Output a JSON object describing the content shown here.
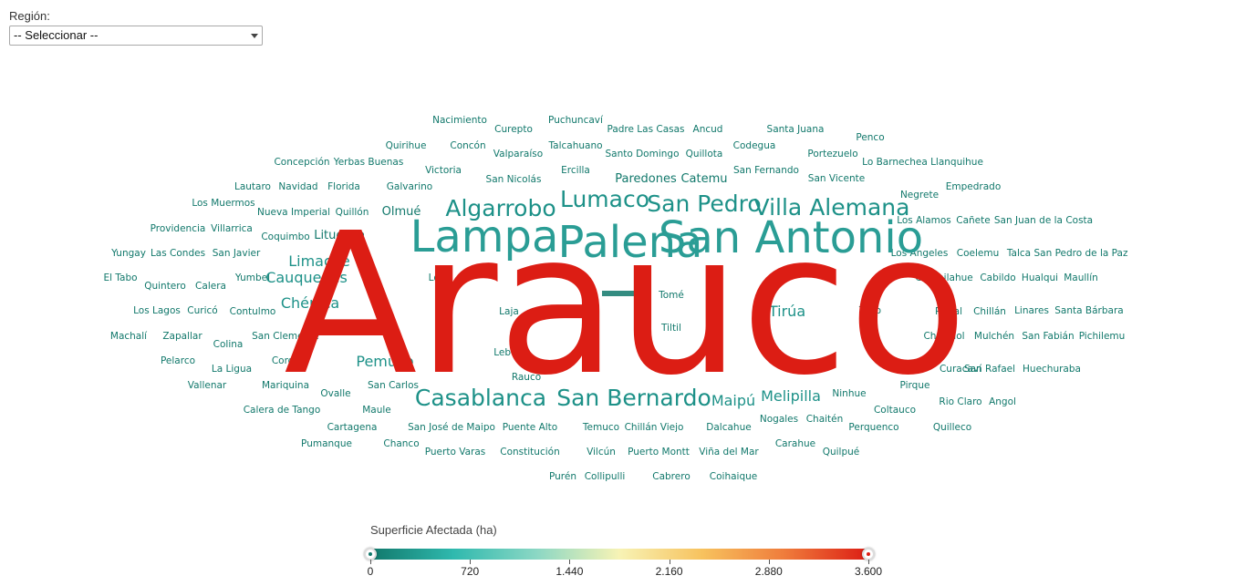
{
  "filter": {
    "label": "Región:",
    "selected": "-- Seleccionar --"
  },
  "colors": {
    "scale": [
      "#11786b",
      "#2fb9ae",
      "#8bd7c4",
      "#f7f3b5",
      "#f7c25e",
      "#ef7b3b",
      "#dc1d14"
    ],
    "small_word": "#11786b",
    "medium_word": "#1d9188",
    "large_word": "#2a9d95",
    "top_word": "#dc1d14"
  },
  "legend": {
    "title": "Superficie Afectada (ha)",
    "ticks": [
      "0",
      "720",
      "1.440",
      "2.160",
      "2.880",
      "3.600"
    ]
  },
  "chart_data": {
    "type": "wordcloud",
    "value_label": "Superficie Afectada (ha)",
    "range": [
      0,
      3600
    ],
    "words": [
      {
        "text": "Arauco",
        "tier": 5
      },
      {
        "text": "Palena",
        "tier": 4
      },
      {
        "text": "Lampa",
        "tier": 4
      },
      {
        "text": "San Antonio",
        "tier": 4
      },
      {
        "text": "Algarrobo",
        "tier": 3
      },
      {
        "text": "Lumaco",
        "tier": 3
      },
      {
        "text": "San Pedro",
        "tier": 3
      },
      {
        "text": "Villa Alemana",
        "tier": 3
      },
      {
        "text": "Casablanca",
        "tier": 3
      },
      {
        "text": "San Bernardo",
        "tier": 3
      },
      {
        "text": "Melipilla",
        "tier": 2
      },
      {
        "text": "Tirúa",
        "tier": 2
      },
      {
        "text": "Pemuco",
        "tier": 2
      },
      {
        "text": "Chépica",
        "tier": 2
      },
      {
        "text": "Cauquenes",
        "tier": 2
      },
      {
        "text": "Limache",
        "tier": 2
      },
      {
        "text": "Maipú",
        "tier": 2
      },
      {
        "text": "Litueche",
        "tier": 1
      },
      {
        "text": "Olmué",
        "tier": 1
      },
      {
        "text": "Paredones",
        "tier": 1
      },
      {
        "text": "Catemu",
        "tier": 1
      },
      {
        "text": "Nacimiento",
        "tier": 0
      },
      {
        "text": "Curepto",
        "tier": 0
      },
      {
        "text": "Puchuncaví",
        "tier": 0
      },
      {
        "text": "Padre Las Casas",
        "tier": 0
      },
      {
        "text": "Ancud",
        "tier": 0
      },
      {
        "text": "Santa Juana",
        "tier": 0
      },
      {
        "text": "Penco",
        "tier": 0
      },
      {
        "text": "Quirihue",
        "tier": 0
      },
      {
        "text": "Concón",
        "tier": 0
      },
      {
        "text": "Valparaíso",
        "tier": 0
      },
      {
        "text": "Talcahuano",
        "tier": 0
      },
      {
        "text": "Santo Domingo",
        "tier": 0
      },
      {
        "text": "Quillota",
        "tier": 0
      },
      {
        "text": "Codegua",
        "tier": 0
      },
      {
        "text": "Portezuelo",
        "tier": 0
      },
      {
        "text": "Concepción",
        "tier": 0
      },
      {
        "text": "Yerbas Buenas",
        "tier": 0
      },
      {
        "text": "Victoria",
        "tier": 0
      },
      {
        "text": "Ercilla",
        "tier": 0
      },
      {
        "text": "San Fernando",
        "tier": 0
      },
      {
        "text": "Lo Barnechea",
        "tier": 0
      },
      {
        "text": "Llanquihue",
        "tier": 0
      },
      {
        "text": "Lautaro",
        "tier": 0
      },
      {
        "text": "Navidad",
        "tier": 0
      },
      {
        "text": "Florida",
        "tier": 0
      },
      {
        "text": "Galvarino",
        "tier": 0
      },
      {
        "text": "San Nicolás",
        "tier": 0
      },
      {
        "text": "San Vicente",
        "tier": 0
      },
      {
        "text": "Empedrado",
        "tier": 0
      },
      {
        "text": "Los Muermos",
        "tier": 0
      },
      {
        "text": "Negrete",
        "tier": 0
      },
      {
        "text": "Nueva Imperial",
        "tier": 0
      },
      {
        "text": "Quillón",
        "tier": 0
      },
      {
        "text": "Los Alamos",
        "tier": 0
      },
      {
        "text": "Cañete",
        "tier": 0
      },
      {
        "text": "San Juan de la Costa",
        "tier": 0
      },
      {
        "text": "Providencia",
        "tier": 0
      },
      {
        "text": "Villarrica",
        "tier": 0
      },
      {
        "text": "Coquimbo",
        "tier": 0
      },
      {
        "text": "Yungay",
        "tier": 0
      },
      {
        "text": "Las Condes",
        "tier": 0
      },
      {
        "text": "San Javier",
        "tier": 0
      },
      {
        "text": "Los Angeles",
        "tier": 0
      },
      {
        "text": "Coelemu",
        "tier": 0
      },
      {
        "text": "Talca",
        "tier": 0
      },
      {
        "text": "San Pedro de la Paz",
        "tier": 0
      },
      {
        "text": "El Tabo",
        "tier": 0
      },
      {
        "text": "Yumbel",
        "tier": 0
      },
      {
        "text": "Lota",
        "tier": 0
      },
      {
        "text": "Curanilahue",
        "tier": 0
      },
      {
        "text": "Cabildo",
        "tier": 0
      },
      {
        "text": "Hualqui",
        "tier": 0
      },
      {
        "text": "Maullín",
        "tier": 0
      },
      {
        "text": "Quintero",
        "tier": 0
      },
      {
        "text": "Calera",
        "tier": 0
      },
      {
        "text": "Tomé",
        "tier": 0
      },
      {
        "text": "Los Lagos",
        "tier": 0
      },
      {
        "text": "Curicó",
        "tier": 0
      },
      {
        "text": "Contulmo",
        "tier": 0
      },
      {
        "text": "Laja",
        "tier": 0
      },
      {
        "text": "Teno",
        "tier": 0
      },
      {
        "text": "Parral",
        "tier": 0
      },
      {
        "text": "Chillán",
        "tier": 0
      },
      {
        "text": "Linares",
        "tier": 0
      },
      {
        "text": "Santa Bárbara",
        "tier": 0
      },
      {
        "text": "Tiltil",
        "tier": 0
      },
      {
        "text": "Machalí",
        "tier": 0
      },
      {
        "text": "Zapallar",
        "tier": 0
      },
      {
        "text": "San Clemente",
        "tier": 0
      },
      {
        "text": "Colina",
        "tier": 0
      },
      {
        "text": "Chol­chol",
        "tier": 0
      },
      {
        "text": "Mulchén",
        "tier": 0
      },
      {
        "text": "San Fabián",
        "tier": 0
      },
      {
        "text": "Pichilemu",
        "tier": 0
      },
      {
        "text": "Lebu",
        "tier": 0
      },
      {
        "text": "Pelarco",
        "tier": 0
      },
      {
        "text": "Coronel",
        "tier": 0
      },
      {
        "text": "La Ligua",
        "tier": 0
      },
      {
        "text": "Curacaví",
        "tier": 0
      },
      {
        "text": "San Rafael",
        "tier": 0
      },
      {
        "text": "Huechuraba",
        "tier": 0
      },
      {
        "text": "Rauco",
        "tier": 0
      },
      {
        "text": "Vallenar",
        "tier": 0
      },
      {
        "text": "Mariquina",
        "tier": 0
      },
      {
        "text": "San Carlos",
        "tier": 0
      },
      {
        "text": "Pirque",
        "tier": 0
      },
      {
        "text": "Ovalle",
        "tier": 0
      },
      {
        "text": "Ninhue",
        "tier": 0
      },
      {
        "text": "Rio Claro",
        "tier": 0
      },
      {
        "text": "Angol",
        "tier": 0
      },
      {
        "text": "Calera de Tango",
        "tier": 0
      },
      {
        "text": "Maule",
        "tier": 0
      },
      {
        "text": "Coltauco",
        "tier": 0
      },
      {
        "text": "Nogales",
        "tier": 0
      },
      {
        "text": "Chaitén",
        "tier": 0
      },
      {
        "text": "Cartagena",
        "tier": 0
      },
      {
        "text": "San José de Maipo",
        "tier": 0
      },
      {
        "text": "Puente Alto",
        "tier": 0
      },
      {
        "text": "Temuco",
        "tier": 0
      },
      {
        "text": "Chillán Viejo",
        "tier": 0
      },
      {
        "text": "Dalcahue",
        "tier": 0
      },
      {
        "text": "Perquenco",
        "tier": 0
      },
      {
        "text": "Quilleco",
        "tier": 0
      },
      {
        "text": "Pumanque",
        "tier": 0
      },
      {
        "text": "Chanco",
        "tier": 0
      },
      {
        "text": "Carahue",
        "tier": 0
      },
      {
        "text": "Puerto Varas",
        "tier": 0
      },
      {
        "text": "Constitución",
        "tier": 0
      },
      {
        "text": "Vilcún",
        "tier": 0
      },
      {
        "text": "Puerto Montt",
        "tier": 0
      },
      {
        "text": "Viña del Mar",
        "tier": 0
      },
      {
        "text": "Quilpué",
        "tier": 0
      },
      {
        "text": "Purén",
        "tier": 0
      },
      {
        "text": "Collipulli",
        "tier": 0
      },
      {
        "text": "Cabrero",
        "tier": 0
      },
      {
        "text": "Coihaique",
        "tier": 0
      }
    ]
  }
}
